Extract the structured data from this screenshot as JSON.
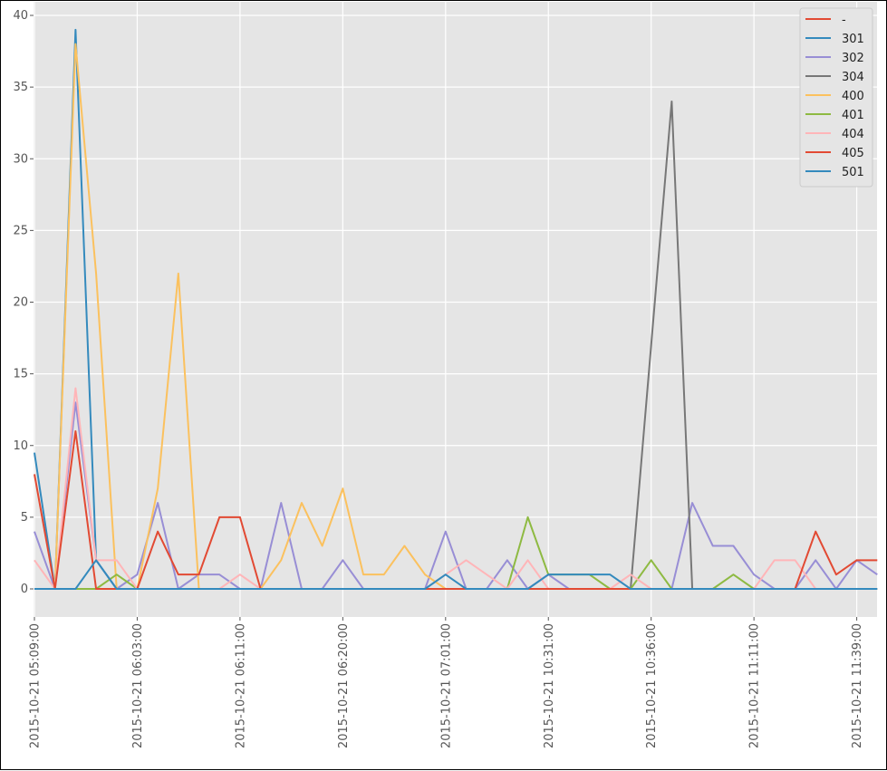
{
  "chart_data": {
    "type": "line",
    "title": "",
    "xlabel": "",
    "ylabel": "",
    "ylim": [
      0,
      40
    ],
    "yticks": [
      0,
      5,
      10,
      15,
      20,
      25,
      30,
      35,
      40
    ],
    "xticks": [
      {
        "index": 0,
        "label": "2015-10-21 05:09:00"
      },
      {
        "index": 5,
        "label": "2015-10-21 06:03:00"
      },
      {
        "index": 10,
        "label": "2015-10-21 06:11:00"
      },
      {
        "index": 15,
        "label": "2015-10-21 06:20:00"
      },
      {
        "index": 20,
        "label": "2015-10-21 07:01:00"
      },
      {
        "index": 25,
        "label": "2015-10-21 10:31:00"
      },
      {
        "index": 30,
        "label": "2015-10-21 10:36:00"
      },
      {
        "index": 35,
        "label": "2015-10-21 11:11:00"
      },
      {
        "index": 40,
        "label": "2015-10-21 11:39:00"
      }
    ],
    "n_points": 42,
    "grid": true,
    "legend_position": "top-right",
    "series": [
      {
        "name": "-",
        "color": "#E24A33",
        "values": [
          0,
          0,
          0,
          0,
          0,
          0,
          0,
          0,
          0,
          0,
          0,
          0,
          0,
          0,
          0,
          0,
          0,
          0,
          0,
          0,
          0,
          0,
          0,
          0,
          0,
          0,
          0,
          0,
          0,
          0,
          0,
          0,
          0,
          0,
          0,
          0,
          0,
          0,
          0,
          0,
          0,
          0
        ]
      },
      {
        "name": "301",
        "color": "#348ABD",
        "values": [
          9.5,
          0,
          39,
          2,
          0,
          0,
          0,
          0,
          0,
          0,
          0,
          0,
          0,
          0,
          0,
          0,
          0,
          0,
          0,
          0,
          0,
          0,
          0,
          0,
          0,
          0,
          0,
          0,
          0,
          0,
          0,
          0,
          0,
          0,
          0,
          0,
          0,
          0,
          0,
          0,
          0,
          0
        ]
      },
      {
        "name": "302",
        "color": "#988ED5",
        "values": [
          4,
          0,
          13,
          2,
          0,
          1,
          6,
          0,
          1,
          1,
          0,
          0,
          6,
          0,
          0,
          2,
          0,
          0,
          0,
          0,
          4,
          0,
          0,
          2,
          0,
          1,
          0,
          0,
          0,
          0,
          0,
          0,
          6,
          3,
          3,
          1,
          0,
          0,
          2,
          0,
          2,
          1
        ]
      },
      {
        "name": "304",
        "color": "#777777",
        "values": [
          0,
          0,
          0,
          0,
          0,
          0,
          0,
          0,
          0,
          0,
          0,
          0,
          0,
          0,
          0,
          0,
          0,
          0,
          0,
          0,
          0,
          0,
          0,
          0,
          0,
          0,
          0,
          0,
          0,
          0,
          17,
          34,
          0,
          0,
          0,
          0,
          0,
          0,
          0,
          0,
          0,
          0
        ]
      },
      {
        "name": "400",
        "color": "#FBC15E",
        "values": [
          0,
          0,
          38,
          22,
          0,
          0,
          7,
          22,
          0,
          0,
          0,
          0,
          2,
          6,
          3,
          7,
          1,
          1,
          3,
          1,
          0,
          0,
          0,
          0,
          0,
          0,
          0,
          0,
          0,
          0,
          0,
          0,
          0,
          0,
          0,
          0,
          0,
          0,
          0,
          0,
          0,
          0
        ]
      },
      {
        "name": "401",
        "color": "#8EBA42",
        "values": [
          0,
          0,
          0,
          0,
          1,
          0,
          0,
          0,
          0,
          0,
          0,
          0,
          0,
          0,
          0,
          0,
          0,
          0,
          0,
          0,
          0,
          0,
          0,
          0,
          5,
          1,
          1,
          1,
          0,
          0,
          2,
          0,
          0,
          0,
          1,
          0,
          0,
          0,
          0,
          0,
          0,
          0
        ]
      },
      {
        "name": "404",
        "color": "#FFB5B8",
        "values": [
          2,
          0,
          14,
          2,
          2,
          0,
          0,
          0,
          0,
          0,
          1,
          0,
          0,
          0,
          0,
          0,
          0,
          0,
          0,
          0,
          1,
          2,
          1,
          0,
          2,
          0,
          0,
          0,
          0,
          1,
          0,
          0,
          0,
          0,
          0,
          0,
          2,
          2,
          0,
          0,
          0,
          0
        ]
      },
      {
        "name": "405",
        "color": "#E24A33",
        "values": [
          8,
          0,
          11,
          0,
          0,
          0,
          4,
          1,
          1,
          5,
          5,
          0,
          0,
          0,
          0,
          0,
          0,
          0,
          0,
          0,
          0,
          0,
          0,
          0,
          0,
          0,
          0,
          0,
          0,
          0,
          0,
          0,
          0,
          0,
          0,
          0,
          0,
          0,
          4,
          1,
          2,
          2
        ]
      },
      {
        "name": "501",
        "color": "#348ABD",
        "values": [
          0,
          0,
          0,
          2,
          0,
          0,
          0,
          0,
          0,
          0,
          0,
          0,
          0,
          0,
          0,
          0,
          0,
          0,
          0,
          0,
          1,
          0,
          0,
          0,
          0,
          1,
          1,
          1,
          1,
          0,
          0,
          0,
          0,
          0,
          0,
          0,
          0,
          0,
          0,
          0,
          0,
          0
        ]
      }
    ]
  }
}
